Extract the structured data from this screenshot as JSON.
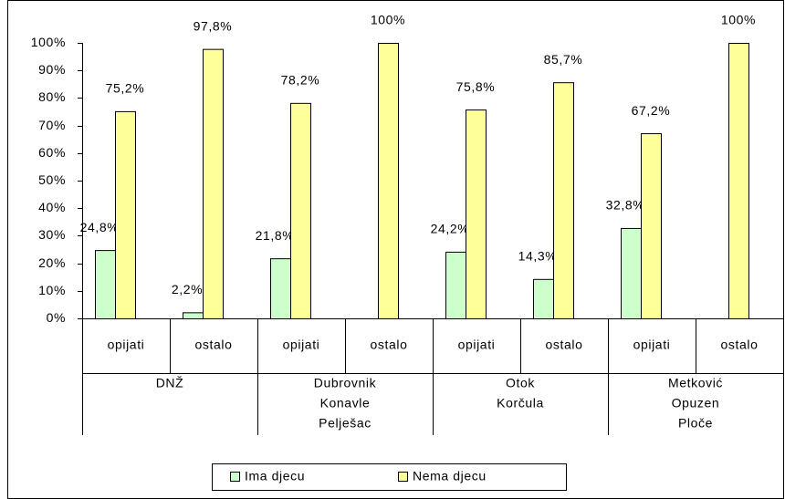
{
  "chart_data": {
    "type": "bar",
    "categories": [
      "opijati",
      "ostalo",
      "opijati",
      "ostalo",
      "opijati",
      "ostalo",
      "opijati",
      "ostalo"
    ],
    "groups": [
      [
        "DNŽ"
      ],
      [
        "Dubrovnik",
        "Konavle",
        "Pelješac"
      ],
      [
        "Otok",
        "Korčula"
      ],
      [
        "Metković",
        "Opuzen",
        "Ploče"
      ]
    ],
    "series": [
      {
        "name": "Ima djecu",
        "color": "#ccffcc",
        "values": [
          24.8,
          2.2,
          21.8,
          0,
          24.2,
          14.3,
          32.8,
          0
        ],
        "value_labels": [
          "24,8%",
          "2,2%",
          "21,8%",
          null,
          "24,2%",
          "14,3%",
          "32,8%",
          null
        ]
      },
      {
        "name": "Nema djecu",
        "color": "#ffff99",
        "values": [
          75.2,
          97.8,
          78.2,
          100,
          75.8,
          85.7,
          67.2,
          100
        ],
        "value_labels": [
          "75,2%",
          "97,8%",
          "78,2%",
          "100%",
          "75,8%",
          "85,7%",
          "67,2%",
          "100%"
        ]
      }
    ],
    "ylim": [
      0,
      100
    ],
    "yticks": [
      {
        "value": 0,
        "label": "0%"
      },
      {
        "value": 10,
        "label": "10%"
      },
      {
        "value": 20,
        "label": "20%"
      },
      {
        "value": 30,
        "label": "30%"
      },
      {
        "value": 40,
        "label": "40%"
      },
      {
        "value": 50,
        "label": "50%"
      },
      {
        "value": 60,
        "label": "60%"
      },
      {
        "value": 70,
        "label": "70%"
      },
      {
        "value": 80,
        "label": "80%"
      },
      {
        "value": 90,
        "label": "90%"
      },
      {
        "value": 100,
        "label": "100%"
      }
    ],
    "grid": false,
    "legend": "bottom"
  }
}
